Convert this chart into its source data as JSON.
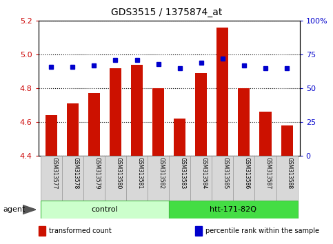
{
  "title": "GDS3515 / 1375874_at",
  "samples": [
    "GSM313577",
    "GSM313578",
    "GSM313579",
    "GSM313580",
    "GSM313581",
    "GSM313582",
    "GSM313583",
    "GSM313584",
    "GSM313585",
    "GSM313586",
    "GSM313587",
    "GSM313588"
  ],
  "bar_values": [
    4.64,
    4.71,
    4.77,
    4.92,
    4.94,
    4.8,
    4.62,
    4.89,
    5.16,
    4.8,
    4.66,
    4.58
  ],
  "dot_pct": [
    66,
    66,
    67,
    71,
    71,
    68,
    65,
    69,
    72,
    67,
    65,
    65
  ],
  "bar_bottom": 4.4,
  "ylim_left": [
    4.4,
    5.2
  ],
  "ylim_right": [
    0,
    100
  ],
  "yticks_left": [
    4.4,
    4.6,
    4.8,
    5.0,
    5.2
  ],
  "yticks_right": [
    0,
    25,
    50,
    75,
    100
  ],
  "ytick_right_labels": [
    "0",
    "25",
    "50",
    "75",
    "100%"
  ],
  "groups": [
    {
      "label": "control",
      "start": 0,
      "end": 6,
      "color": "#ccffcc",
      "edge": "#44bb44"
    },
    {
      "label": "htt-171-82Q",
      "start": 6,
      "end": 12,
      "color": "#44dd44",
      "edge": "#44bb44"
    }
  ],
  "agent_label": "agent",
  "bar_color": "#cc1100",
  "dot_color": "#0000cc",
  "tick_label_color_left": "#cc0000",
  "tick_label_color_right": "#0000cc",
  "legend_items": [
    {
      "color": "#cc1100",
      "label": "transformed count"
    },
    {
      "color": "#0000cc",
      "label": "percentile rank within the sample"
    }
  ]
}
